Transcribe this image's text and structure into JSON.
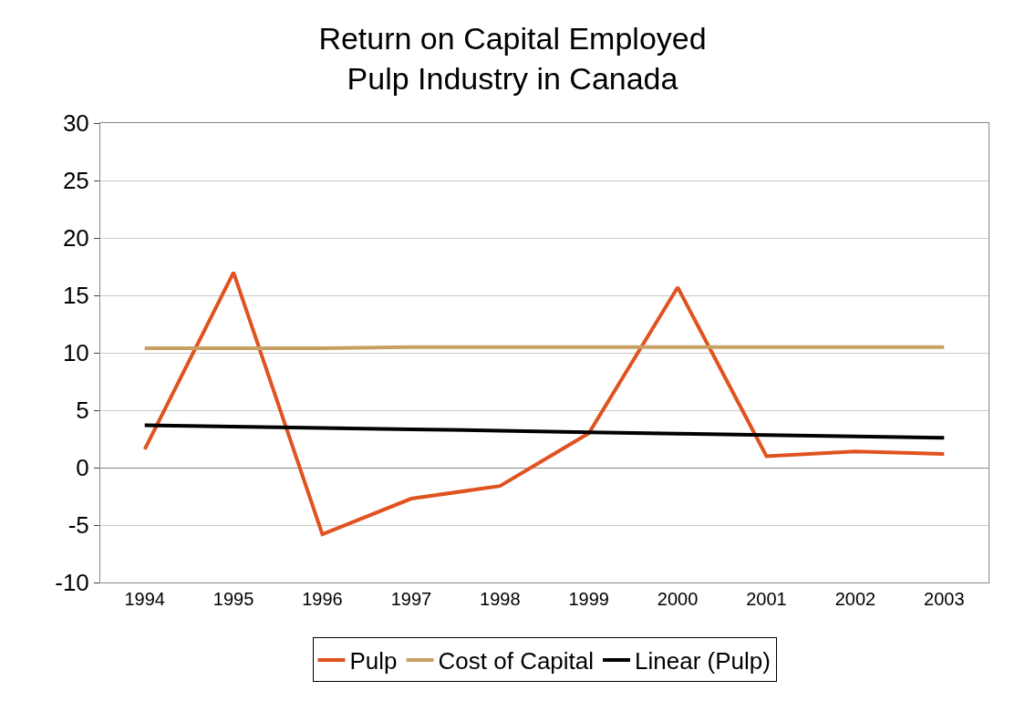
{
  "chart_data": {
    "type": "line",
    "title": "Return on Capital Employed\nPulp Industry in Canada",
    "categories": [
      "1994",
      "1995",
      "1996",
      "1997",
      "1998",
      "1999",
      "2000",
      "2001",
      "2002",
      "2003"
    ],
    "series": [
      {
        "name": "Pulp",
        "color": "#e0521f",
        "values": [
          1.6,
          17.0,
          -5.8,
          -2.7,
          -1.6,
          3.0,
          15.7,
          1.0,
          1.4,
          1.2
        ]
      },
      {
        "name": "Cost of Capital",
        "color": "#c8a064",
        "values": [
          10.4,
          10.4,
          10.4,
          10.5,
          10.5,
          10.5,
          10.5,
          10.5,
          10.5,
          10.5
        ]
      },
      {
        "name": "Linear (Pulp)",
        "color": "#000000",
        "values": [
          3.7,
          3.58,
          3.46,
          3.34,
          3.22,
          3.08,
          2.96,
          2.84,
          2.72,
          2.6
        ]
      }
    ],
    "ylim": [
      -10,
      30
    ],
    "yticks": [
      -10,
      -5,
      0,
      5,
      10,
      15,
      20,
      25,
      30
    ],
    "grid": "y",
    "legend": "bottom",
    "marker": "none",
    "line_style": "solid"
  }
}
